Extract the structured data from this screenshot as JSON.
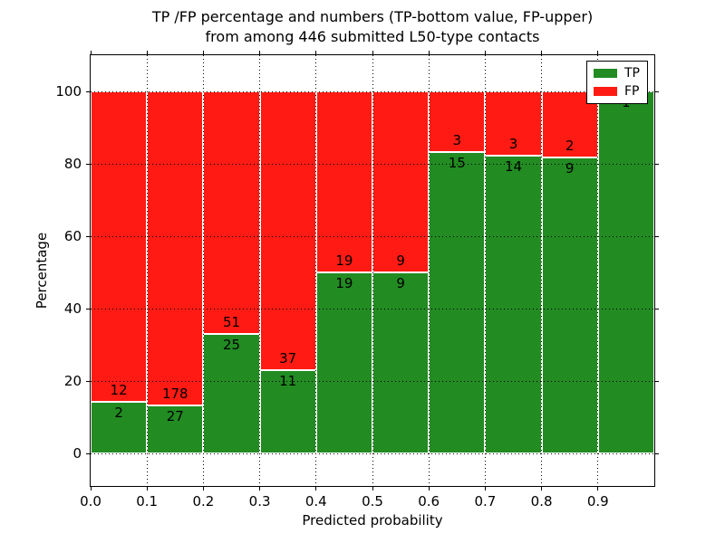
{
  "figure": {
    "title_line1": "TP /FP percentage and numbers (TP-bottom value, FP-upper)",
    "title_line2": "from among 446 submitted L50-type contacts",
    "xlabel": "Predicted probability",
    "ylabel": "Percentage"
  },
  "legend": {
    "position": "upper right",
    "items": [
      {
        "label": "TP",
        "color": "#228b22"
      },
      {
        "label": "FP",
        "color": "#ff1b13"
      }
    ]
  },
  "colors": {
    "tp": "#228b22",
    "fp": "#ff1b13",
    "grid": "#000000",
    "bar_edge": "#ffffff",
    "spine": "#000000",
    "background": "#ffffff"
  },
  "chart_data": {
    "type": "bar",
    "stacked": true,
    "normalized_to_percent": true,
    "title": "TP /FP percentage and numbers (TP-bottom value, FP-upper) from among 446 submitted L50-type contacts",
    "xlabel": "Predicted probability",
    "ylabel": "Percentage",
    "total_contacts": 446,
    "bin_width": 0.1,
    "categories": [
      "0.0-0.1",
      "0.1-0.2",
      "0.2-0.3",
      "0.3-0.4",
      "0.4-0.5",
      "0.5-0.6",
      "0.6-0.7",
      "0.7-0.8",
      "0.8-0.9",
      "0.9-1.0"
    ],
    "series": [
      {
        "name": "TP",
        "counts": [
          2,
          27,
          25,
          11,
          19,
          9,
          15,
          14,
          9,
          1
        ]
      },
      {
        "name": "FP",
        "counts": [
          12,
          178,
          51,
          37,
          19,
          9,
          3,
          3,
          2,
          0
        ]
      }
    ],
    "tp_percent_of_bin": [
      14.3,
      13.2,
      32.9,
      22.9,
      50.0,
      50.0,
      83.3,
      82.4,
      81.8,
      100.0
    ],
    "x_ticks": [
      "0.0",
      "0.1",
      "0.2",
      "0.3",
      "0.4",
      "0.5",
      "0.6",
      "0.7",
      "0.8",
      "0.9"
    ],
    "y_ticks": [
      0,
      20,
      40,
      60,
      80,
      100
    ],
    "xlim": [
      0.0,
      1.0
    ],
    "ylim": [
      -9,
      110
    ],
    "grid": true,
    "legend_position": "upper right"
  }
}
